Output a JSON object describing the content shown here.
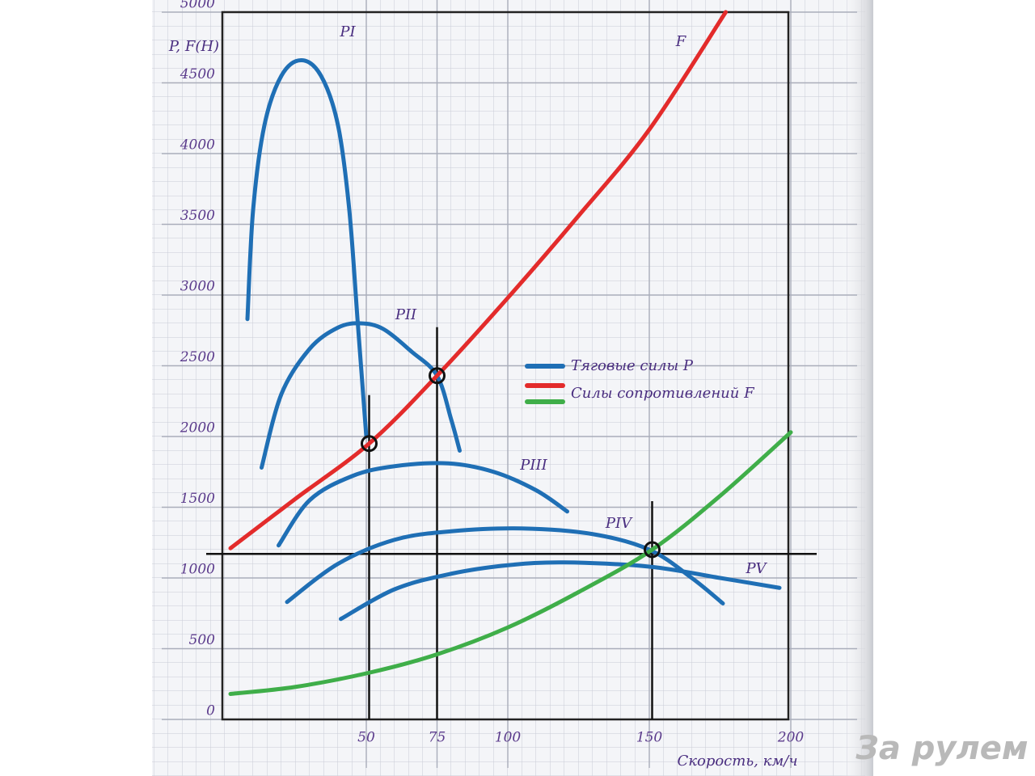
{
  "chart_data": {
    "type": "line",
    "xlabel": "Скорость, км/ч",
    "ylabel": "P, F(H)",
    "xlim": [
      0,
      200
    ],
    "ylim": [
      0,
      5000
    ],
    "xticks": [
      50,
      75,
      100,
      150,
      200
    ],
    "yticks": [
      0,
      500,
      1000,
      1500,
      2000,
      2500,
      3000,
      3500,
      4000,
      4500,
      5000
    ],
    "grid": true,
    "series": [
      {
        "name": "PI",
        "color": "#1f6fb5",
        "x": [
          8,
          10,
          14,
          20,
          27,
          34,
          40,
          44,
          47,
          50
        ],
        "values": [
          2830,
          3600,
          4200,
          4550,
          4660,
          4550,
          4200,
          3600,
          2800,
          2000
        ]
      },
      {
        "name": "PII",
        "color": "#1f6fb5",
        "x": [
          13,
          20,
          30,
          40,
          48,
          56,
          66,
          75,
          80,
          83
        ],
        "values": [
          1780,
          2300,
          2620,
          2770,
          2800,
          2760,
          2600,
          2430,
          2120,
          1900
        ]
      },
      {
        "name": "PIII",
        "color": "#1f6fb5",
        "x": [
          19,
          30,
          45,
          60,
          79,
          95,
          110,
          121
        ],
        "values": [
          1230,
          1550,
          1720,
          1790,
          1810,
          1750,
          1620,
          1470
        ]
      },
      {
        "name": "PIV",
        "color": "#1f6fb5",
        "x": [
          22,
          40,
          60,
          80,
          105,
          130,
          150,
          165,
          176
        ],
        "values": [
          830,
          1100,
          1270,
          1330,
          1350,
          1310,
          1200,
          1000,
          820
        ]
      },
      {
        "name": "PV",
        "color": "#1f6fb5",
        "x": [
          41,
          60,
          80,
          100,
          120,
          150,
          175,
          196
        ],
        "values": [
          710,
          920,
          1030,
          1090,
          1110,
          1080,
          1000,
          930
        ]
      },
      {
        "name": "F",
        "color": "#e32b2b",
        "x": [
          2,
          25,
          51,
          75,
          100,
          125,
          150,
          177
        ],
        "values": [
          1210,
          1560,
          1950,
          2430,
          2980,
          3560,
          4170,
          5000
        ]
      },
      {
        "color": "#3fae49",
        "x": [
          2,
          25,
          51,
          75,
          100,
          125,
          151,
          175,
          200
        ],
        "values": [
          180,
          230,
          330,
          460,
          650,
          900,
          1200,
          1580,
          2030
        ]
      }
    ],
    "legend": [
      {
        "label": "Тяговые силы P",
        "colors": [
          "#1f6fb5"
        ]
      },
      {
        "label": "Силы сопротивлений F",
        "colors": [
          "#e32b2b",
          "#3fae49"
        ]
      }
    ],
    "hline": 1170,
    "points": [
      {
        "x": 51,
        "y": 1950
      },
      {
        "x": 75,
        "y": 2430
      },
      {
        "x": 151,
        "y": 1200
      }
    ]
  },
  "watermark": "За рулем"
}
